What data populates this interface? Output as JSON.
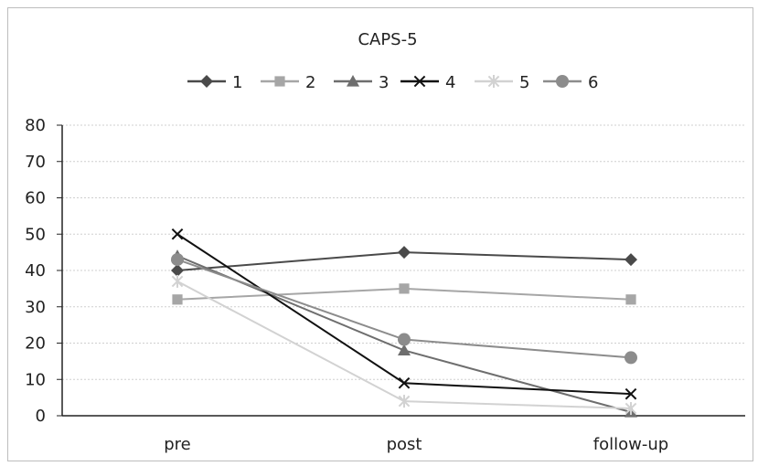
{
  "chart_data": {
    "type": "line",
    "title": "CAPS-5",
    "categories": [
      "pre",
      "post",
      "follow-up"
    ],
    "ylim": [
      0,
      80
    ],
    "yticks": [
      0,
      10,
      20,
      30,
      40,
      50,
      60,
      70,
      80
    ],
    "grid": true,
    "legend_position": "top",
    "series": [
      {
        "name": "1",
        "values": [
          40,
          45,
          43
        ],
        "color": "#4a4a4a",
        "marker": "diamond"
      },
      {
        "name": "2",
        "values": [
          32,
          35,
          32
        ],
        "color": "#a6a6a6",
        "marker": "square"
      },
      {
        "name": "3",
        "values": [
          44,
          18,
          1
        ],
        "color": "#6e6e6e",
        "marker": "triangle"
      },
      {
        "name": "4",
        "values": [
          50,
          9,
          6
        ],
        "color": "#111111",
        "marker": "x"
      },
      {
        "name": "5",
        "values": [
          37,
          4,
          2
        ],
        "color": "#d2d2d2",
        "marker": "star"
      },
      {
        "name": "6",
        "values": [
          43,
          21,
          16
        ],
        "color": "#8c8c8c",
        "marker": "circle"
      }
    ]
  }
}
